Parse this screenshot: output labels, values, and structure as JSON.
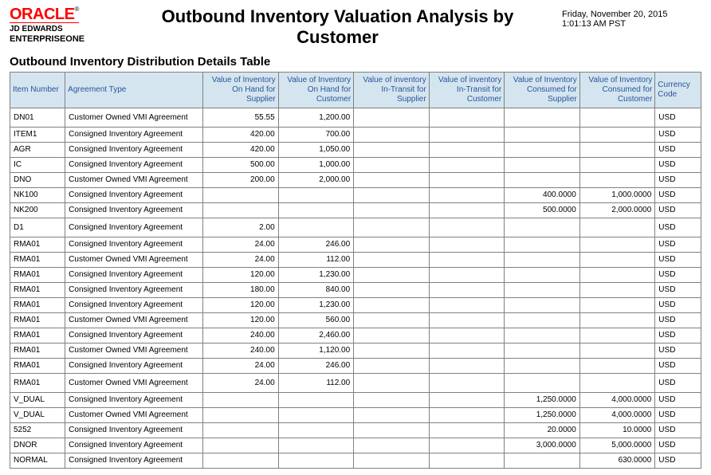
{
  "header": {
    "logo_text": "ORACLE",
    "logo_reg": "®",
    "brand_line1": "JD EDWARDS",
    "brand_line2": "ENTERPRISEONE",
    "title": "Outbound Inventory Valuation Analysis by Customer",
    "date_line": "Friday, November 20, 2015",
    "time_line": "1:01:13 AM PST"
  },
  "section_title": "Outbound Inventory Distribution Details Table",
  "table": {
    "columns": [
      "Item Number",
      "Agreement Type",
      "Value of Inventory On Hand for Supplier",
      "Value of Inventory On Hand for Customer",
      "Value of inventory In-Transit for Supplier",
      "Value of inventory In-Transit for Customer",
      "Value of Inventory Consumed for Supplier",
      "Value of Inventory Consumed for Customer",
      "Currency Code"
    ],
    "rows": [
      {
        "item": "DN01",
        "agreement": "Customer Owned VMI Agreement",
        "onhand_sup": "55.55",
        "onhand_cust": "1,200.00",
        "intransit_sup": "",
        "intransit_cust": "",
        "consumed_sup": "",
        "consumed_cust": "",
        "currency": "USD"
      },
      {
        "item": "ITEM1",
        "agreement": "Consigned Inventory Agreement",
        "onhand_sup": "420.00",
        "onhand_cust": "700.00",
        "intransit_sup": "",
        "intransit_cust": "",
        "consumed_sup": "",
        "consumed_cust": "",
        "currency": "USD"
      },
      {
        "item": "AGR",
        "agreement": "Consigned Inventory Agreement",
        "onhand_sup": "420.00",
        "onhand_cust": "1,050.00",
        "intransit_sup": "",
        "intransit_cust": "",
        "consumed_sup": "",
        "consumed_cust": "",
        "currency": "USD"
      },
      {
        "item": "IC",
        "agreement": "Consigned Inventory Agreement",
        "onhand_sup": "500.00",
        "onhand_cust": "1,000.00",
        "intransit_sup": "",
        "intransit_cust": "",
        "consumed_sup": "",
        "consumed_cust": "",
        "currency": "USD"
      },
      {
        "item": "DNO",
        "agreement": "Customer Owned VMI Agreement",
        "onhand_sup": "200.00",
        "onhand_cust": "2,000.00",
        "intransit_sup": "",
        "intransit_cust": "",
        "consumed_sup": "",
        "consumed_cust": "",
        "currency": "USD"
      },
      {
        "item": "NK100",
        "agreement": "Consigned Inventory Agreement",
        "onhand_sup": "",
        "onhand_cust": "",
        "intransit_sup": "",
        "intransit_cust": "",
        "consumed_sup": "400.0000",
        "consumed_cust": "1,000.0000",
        "currency": "USD"
      },
      {
        "item": "NK200",
        "agreement": "Consigned Inventory Agreement",
        "onhand_sup": "",
        "onhand_cust": "",
        "intransit_sup": "",
        "intransit_cust": "",
        "consumed_sup": "500.0000",
        "consumed_cust": "2,000.0000",
        "currency": "USD"
      },
      {
        "item": "D1",
        "agreement": "Consigned Inventory Agreement",
        "onhand_sup": "2.00",
        "onhand_cust": "",
        "intransit_sup": "",
        "intransit_cust": "",
        "consumed_sup": "",
        "consumed_cust": "",
        "currency": "USD"
      },
      {
        "item": "RMA01",
        "agreement": "Consigned Inventory Agreement",
        "onhand_sup": "24.00",
        "onhand_cust": "246.00",
        "intransit_sup": "",
        "intransit_cust": "",
        "consumed_sup": "",
        "consumed_cust": "",
        "currency": "USD"
      },
      {
        "item": "RMA01",
        "agreement": "Customer Owned VMI Agreement",
        "onhand_sup": "24.00",
        "onhand_cust": "112.00",
        "intransit_sup": "",
        "intransit_cust": "",
        "consumed_sup": "",
        "consumed_cust": "",
        "currency": "USD"
      },
      {
        "item": "RMA01",
        "agreement": "Consigned Inventory Agreement",
        "onhand_sup": "120.00",
        "onhand_cust": "1,230.00",
        "intransit_sup": "",
        "intransit_cust": "",
        "consumed_sup": "",
        "consumed_cust": "",
        "currency": "USD"
      },
      {
        "item": "RMA01",
        "agreement": "Consigned Inventory Agreement",
        "onhand_sup": "180.00",
        "onhand_cust": "840.00",
        "intransit_sup": "",
        "intransit_cust": "",
        "consumed_sup": "",
        "consumed_cust": "",
        "currency": "USD"
      },
      {
        "item": "RMA01",
        "agreement": "Consigned Inventory Agreement",
        "onhand_sup": "120.00",
        "onhand_cust": "1,230.00",
        "intransit_sup": "",
        "intransit_cust": "",
        "consumed_sup": "",
        "consumed_cust": "",
        "currency": "USD"
      },
      {
        "item": "RMA01",
        "agreement": "Customer Owned VMI Agreement",
        "onhand_sup": "120.00",
        "onhand_cust": "560.00",
        "intransit_sup": "",
        "intransit_cust": "",
        "consumed_sup": "",
        "consumed_cust": "",
        "currency": "USD"
      },
      {
        "item": "RMA01",
        "agreement": "Consigned Inventory Agreement",
        "onhand_sup": "240.00",
        "onhand_cust": "2,460.00",
        "intransit_sup": "",
        "intransit_cust": "",
        "consumed_sup": "",
        "consumed_cust": "",
        "currency": "USD"
      },
      {
        "item": "RMA01",
        "agreement": "Customer Owned VMI Agreement",
        "onhand_sup": "240.00",
        "onhand_cust": "1,120.00",
        "intransit_sup": "",
        "intransit_cust": "",
        "consumed_sup": "",
        "consumed_cust": "",
        "currency": "USD"
      },
      {
        "item": "RMA01",
        "agreement": "Consigned Inventory Agreement",
        "onhand_sup": "24.00",
        "onhand_cust": "246.00",
        "intransit_sup": "",
        "intransit_cust": "",
        "consumed_sup": "",
        "consumed_cust": "",
        "currency": "USD"
      },
      {
        "item": "RMA01",
        "agreement": "Customer Owned VMI Agreement",
        "onhand_sup": "24.00",
        "onhand_cust": "112.00",
        "intransit_sup": "",
        "intransit_cust": "",
        "consumed_sup": "",
        "consumed_cust": "",
        "currency": "USD"
      },
      {
        "item": "V_DUAL",
        "agreement": "Consigned Inventory Agreement",
        "onhand_sup": "",
        "onhand_cust": "",
        "intransit_sup": "",
        "intransit_cust": "",
        "consumed_sup": "1,250.0000",
        "consumed_cust": "4,000.0000",
        "currency": "USD"
      },
      {
        "item": "V_DUAL",
        "agreement": "Customer Owned VMI Agreement",
        "onhand_sup": "",
        "onhand_cust": "",
        "intransit_sup": "",
        "intransit_cust": "",
        "consumed_sup": "1,250.0000",
        "consumed_cust": "4,000.0000",
        "currency": "USD"
      },
      {
        "item": "5252",
        "agreement": "Consigned Inventory Agreement",
        "onhand_sup": "",
        "onhand_cust": "",
        "intransit_sup": "",
        "intransit_cust": "",
        "consumed_sup": "20.0000",
        "consumed_cust": "10.0000",
        "currency": "USD"
      },
      {
        "item": "DNOR",
        "agreement": "Consigned Inventory Agreement",
        "onhand_sup": "",
        "onhand_cust": "",
        "intransit_sup": "",
        "intransit_cust": "",
        "consumed_sup": "3,000.0000",
        "consumed_cust": "5,000.0000",
        "currency": "USD"
      },
      {
        "item": "NORMAL",
        "agreement": "Consigned Inventory Agreement",
        "onhand_sup": "",
        "onhand_cust": "",
        "intransit_sup": "",
        "intransit_cust": "",
        "consumed_sup": "",
        "consumed_cust": "630.0000",
        "currency": "USD"
      }
    ]
  },
  "styles": {
    "header_bg": "#d4e5f0",
    "header_fg": "#2a5599",
    "border_color": "#808080",
    "oracle_red": "#ff0000"
  }
}
